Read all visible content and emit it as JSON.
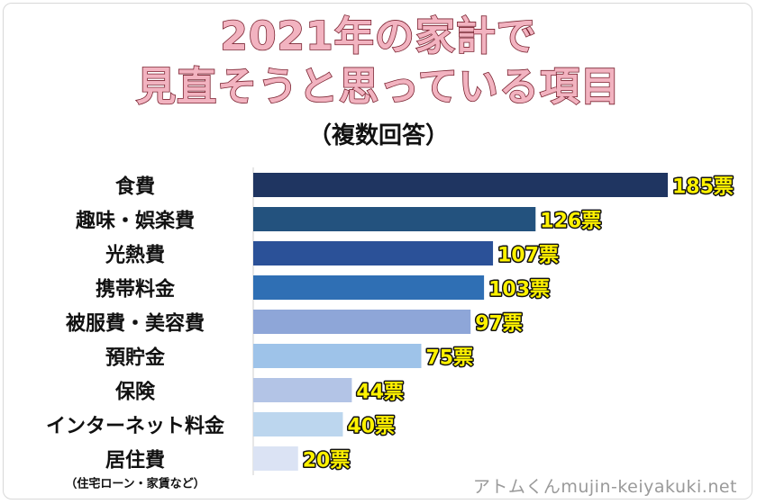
{
  "title_line1": "2021年の家計で",
  "title_line2": "見直そうと思っている項目",
  "subtitle": "（複数回答）",
  "watermark": "アトムくんmujin-keiyakuki.net",
  "chart_data": {
    "type": "bar",
    "orientation": "horizontal",
    "unit": "票",
    "categories": [
      "食費",
      "趣味・娯楽費",
      "光熱費",
      "携帯料金",
      "被服費・美容費",
      "預貯金",
      "保険",
      "インターネット料金",
      "居住費"
    ],
    "category_notes": [
      "",
      "",
      "",
      "",
      "",
      "",
      "",
      "",
      "（住宅ローン・家賃など）"
    ],
    "values": [
      185,
      126,
      107,
      103,
      97,
      75,
      44,
      40,
      20
    ],
    "value_labels": [
      "185票",
      "126票",
      "107票",
      "103票",
      "97票",
      "75票",
      "44票",
      "40票",
      "20票"
    ],
    "colors": [
      "#1f3561",
      "#23527e",
      "#2b5198",
      "#2f6fb4",
      "#8ea6d8",
      "#9ec3e9",
      "#b3c4e6",
      "#bcd6ee",
      "#dbe3f4"
    ],
    "label_color": "#fff200"
  }
}
